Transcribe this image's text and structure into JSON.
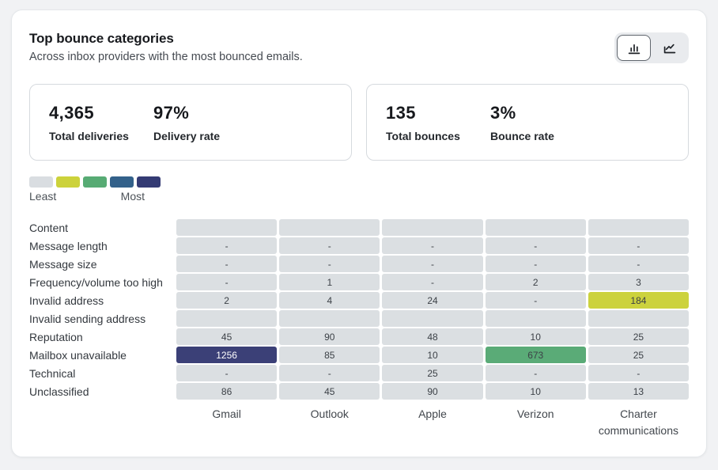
{
  "card": {
    "title": "Top bounce categories",
    "subtitle": "Across inbox providers with the most bounced emails."
  },
  "view_toggle": {
    "bar_view_selected": true,
    "line_view_selected": false
  },
  "stats": [
    {
      "value1": "4,365",
      "label1": "Total deliveries",
      "value2": "97%",
      "label2": "Delivery rate"
    },
    {
      "value1": "135",
      "label1": "Total bounces",
      "value2": "3%",
      "label2": "Bounce rate"
    }
  ],
  "legend": {
    "least": "Least",
    "most": "Most",
    "colors": [
      "#d9dde1",
      "#ccd23b",
      "#57ab74",
      "#33618a",
      "#343b74"
    ]
  },
  "chart_data": {
    "type": "heatmap",
    "title": "Top bounce categories",
    "subtitle": "Across inbox providers with the most bounced emails.",
    "legend": {
      "min_label": "Least",
      "max_label": "Most"
    },
    "columns": [
      "Gmail",
      "Outlook",
      "Apple",
      "Verizon",
      "Charter communications"
    ],
    "rows": [
      {
        "label": "Content",
        "values": [
          "",
          "",
          "",
          "",
          ""
        ],
        "levels": [
          0,
          0,
          0,
          0,
          0
        ]
      },
      {
        "label": "Message length",
        "values": [
          "-",
          "-",
          "-",
          "-",
          "-"
        ],
        "levels": [
          0,
          0,
          0,
          0,
          0
        ]
      },
      {
        "label": "Message size",
        "values": [
          "-",
          "-",
          "-",
          "-",
          "-"
        ],
        "levels": [
          0,
          0,
          0,
          0,
          0
        ]
      },
      {
        "label": "Frequency/volume too high",
        "values": [
          "-",
          "1",
          "-",
          "2",
          "3"
        ],
        "levels": [
          0,
          0,
          0,
          0,
          0
        ]
      },
      {
        "label": "Invalid address",
        "values": [
          "2",
          "4",
          "24",
          "-",
          "184"
        ],
        "levels": [
          0,
          0,
          0,
          0,
          1
        ]
      },
      {
        "label": "Invalid sending address",
        "values": [
          "",
          "",
          "",
          "",
          ""
        ],
        "levels": [
          0,
          0,
          0,
          0,
          0
        ]
      },
      {
        "label": "Reputation",
        "values": [
          "45",
          "90",
          "48",
          "10",
          "25"
        ],
        "levels": [
          0,
          0,
          0,
          0,
          0
        ]
      },
      {
        "label": "Mailbox unavailable",
        "values": [
          "1256",
          "85",
          "10",
          "673",
          "25"
        ],
        "levels": [
          4,
          0,
          0,
          2,
          0
        ]
      },
      {
        "label": "Technical",
        "values": [
          "-",
          "-",
          "25",
          "-",
          "-"
        ],
        "levels": [
          0,
          0,
          0,
          0,
          0
        ]
      },
      {
        "label": "Unclassified",
        "values": [
          "86",
          "45",
          "90",
          "10",
          "13"
        ],
        "levels": [
          0,
          0,
          0,
          0,
          0
        ]
      }
    ],
    "cell_colors": {
      "0": "#dbdfe2",
      "1": "#ccd23d",
      "2": "#5aab77",
      "3": "#33618a",
      "4": "#3b4077"
    },
    "cell_text_light_levels": [
      3,
      4
    ],
    "cell_text_color": "#3c4147",
    "summary": {
      "total_deliveries": 4365,
      "delivery_rate_pct": 97,
      "total_bounces": 135,
      "bounce_rate_pct": 3
    }
  }
}
